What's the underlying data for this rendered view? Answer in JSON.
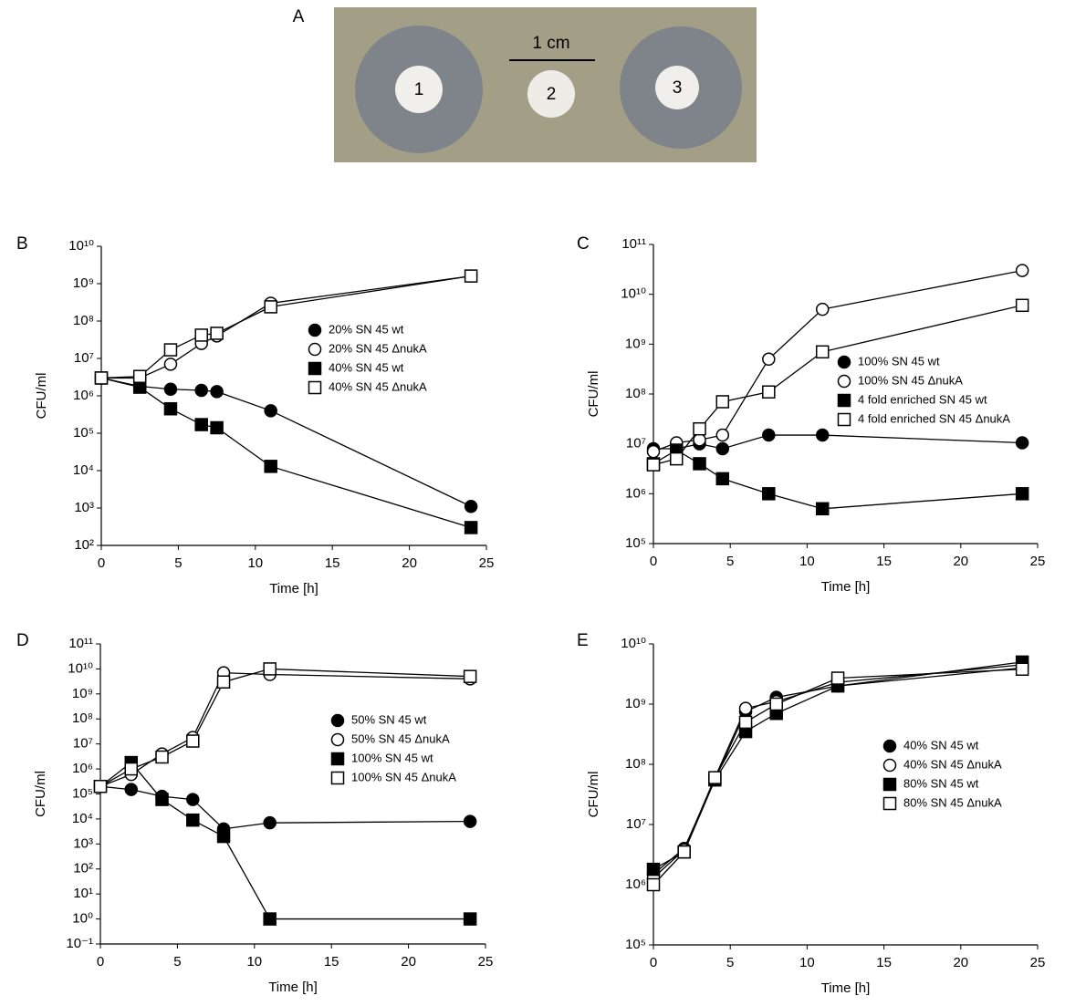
{
  "photo": {
    "label": "A",
    "scale_bar": "1 cm",
    "disks": [
      "1",
      "2",
      "3"
    ]
  },
  "chart_data": [
    {
      "type": "line",
      "panel_label": "B",
      "xlabel": "Time [h]",
      "ylabel": "CFU/ml",
      "log_y": true,
      "legend": "right",
      "color": "#000000",
      "x": [
        0,
        2.5,
        4.5,
        6.5,
        7.5,
        11,
        24
      ],
      "xlim": [
        0,
        25
      ],
      "xticks": [
        0,
        5,
        10,
        15,
        20,
        25
      ],
      "ylim": [
        100,
        10000000000
      ],
      "yticks": [
        {
          "value": 100,
          "label": "10²"
        },
        {
          "value": 1000,
          "label": "10³"
        },
        {
          "value": 10000,
          "label": "10⁴"
        },
        {
          "value": 100000,
          "label": "10⁵"
        },
        {
          "value": 1000000,
          "label": "10⁶"
        },
        {
          "value": 10000000,
          "label": "10⁷"
        },
        {
          "value": 100000000,
          "label": "10⁸"
        },
        {
          "value": 1000000000,
          "label": "10⁹"
        },
        {
          "value": 10000000000,
          "label": "10¹⁰"
        }
      ],
      "series": [
        {
          "name": "20% SN 45 wt",
          "marker": "circle",
          "filled": true,
          "values": [
            3000000,
            1800000,
            1500000,
            1400000,
            1300000,
            400000,
            1100
          ]
        },
        {
          "name": "20% SN 45 ΔnukA",
          "marker": "circle",
          "filled": false,
          "values": [
            3000000,
            3000000,
            7000000,
            25000000,
            40000000,
            300000000,
            1600000000
          ]
        },
        {
          "name": "40% SN 45 wt",
          "marker": "square",
          "filled": true,
          "values": [
            3000000,
            1700000,
            450000,
            170000,
            140000,
            13000,
            300
          ]
        },
        {
          "name": "40% SN 45 ΔnukA",
          "marker": "square",
          "filled": false,
          "values": [
            3000000,
            3300000,
            17000000,
            42000000,
            47000000,
            240000000,
            1600000000
          ]
        }
      ]
    },
    {
      "type": "line",
      "panel_label": "C",
      "xlabel": "Time [h]",
      "ylabel": "CFU/ml",
      "log_y": true,
      "legend": "right",
      "color": "#000000",
      "x": [
        0,
        1.5,
        3,
        4.5,
        7.5,
        11,
        24
      ],
      "xlim": [
        0,
        25
      ],
      "xticks": [
        0,
        5,
        10,
        15,
        20,
        25
      ],
      "ylim": [
        100000,
        100000000000
      ],
      "yticks": [
        {
          "value": 100000,
          "label": "10⁵"
        },
        {
          "value": 1000000,
          "label": "10⁶"
        },
        {
          "value": 10000000,
          "label": "10⁷"
        },
        {
          "value": 100000000,
          "label": "10⁸"
        },
        {
          "value": 1000000000,
          "label": "10⁹"
        },
        {
          "value": 10000000000,
          "label": "10¹⁰"
        },
        {
          "value": 100000000000,
          "label": "10¹¹"
        }
      ],
      "series": [
        {
          "name": "100% SN 45 wt",
          "marker": "circle",
          "filled": true,
          "values": [
            8000000,
            8000000,
            10000000,
            8000000,
            15000000,
            15000000,
            10500000
          ]
        },
        {
          "name": "100% SN 45 ΔnukA",
          "marker": "circle",
          "filled": false,
          "values": [
            7000000,
            10500000,
            12000000,
            15000000,
            500000000,
            5000000000,
            30000000000
          ]
        },
        {
          "name": "4 fold enriched SN 45 wt",
          "marker": "square",
          "filled": true,
          "values": [
            4000000,
            7500000,
            4000000,
            2000000,
            1000000,
            500000,
            1000000
          ]
        },
        {
          "name": "4 fold enriched SN 45 ΔnukA",
          "marker": "square",
          "filled": false,
          "values": [
            3800000,
            5000000,
            20000000,
            70000000,
            110000000,
            700000000,
            6000000000
          ]
        }
      ]
    },
    {
      "type": "line",
      "panel_label": "D",
      "xlabel": "Time [h]",
      "ylabel": "CFU/ml",
      "log_y": true,
      "legend": "right",
      "color": "#000000",
      "x": [
        0,
        2,
        4,
        6,
        8,
        11,
        24
      ],
      "xlim": [
        0,
        25
      ],
      "xticks": [
        0,
        5,
        10,
        15,
        20,
        25
      ],
      "ylim": [
        0.1,
        100000000000
      ],
      "yticks": [
        {
          "value": 0.1,
          "label": "10⁻¹"
        },
        {
          "value": 1,
          "label": "10⁰"
        },
        {
          "value": 10,
          "label": "10¹"
        },
        {
          "value": 100,
          "label": "10²"
        },
        {
          "value": 1000,
          "label": "10³"
        },
        {
          "value": 10000,
          "label": "10⁴"
        },
        {
          "value": 100000,
          "label": "10⁵"
        },
        {
          "value": 1000000,
          "label": "10⁶"
        },
        {
          "value": 10000000,
          "label": "10⁷"
        },
        {
          "value": 100000000,
          "label": "10⁸"
        },
        {
          "value": 1000000000,
          "label": "10⁹"
        },
        {
          "value": 10000000000,
          "label": "10¹⁰"
        },
        {
          "value": 100000000000,
          "label": "10¹¹"
        }
      ],
      "series": [
        {
          "name": "50% SN 45 wt",
          "marker": "circle",
          "filled": true,
          "values": [
            200000,
            150000,
            80000,
            60000,
            4000,
            7000,
            8000
          ]
        },
        {
          "name": "50% SN 45 ΔnukA",
          "marker": "circle",
          "filled": false,
          "values": [
            200000,
            600000,
            4000000,
            18000000,
            7000000000,
            6000000000,
            4000000000
          ]
        },
        {
          "name": "100% SN 45 wt",
          "marker": "square",
          "filled": true,
          "values": [
            200000,
            1800000,
            60000,
            9000,
            2000,
            1,
            1
          ]
        },
        {
          "name": "100% SN 45 ΔnukA",
          "marker": "square",
          "filled": false,
          "values": [
            200000,
            1000000,
            3000000,
            13000000,
            3000000000,
            10000000000,
            5000000000
          ]
        }
      ]
    },
    {
      "type": "line",
      "panel_label": "E",
      "xlabel": "Time [h]",
      "ylabel": "CFU/ml",
      "log_y": true,
      "legend": "right",
      "color": "#000000",
      "x": [
        0,
        2,
        4,
        6,
        8,
        12,
        24
      ],
      "xlim": [
        0,
        25
      ],
      "xticks": [
        0,
        5,
        10,
        15,
        20,
        25
      ],
      "ylim": [
        100000,
        10000000000
      ],
      "yticks": [
        {
          "value": 100000,
          "label": "10⁵"
        },
        {
          "value": 1000000,
          "label": "10⁶"
        },
        {
          "value": 10000000,
          "label": "10⁷"
        },
        {
          "value": 100000000,
          "label": "10⁸"
        },
        {
          "value": 1000000000,
          "label": "10⁹"
        },
        {
          "value": 10000000000,
          "label": "10¹⁰"
        }
      ],
      "series": [
        {
          "name": "40% SN 45 wt",
          "marker": "circle",
          "filled": true,
          "values": [
            1500000,
            4000000,
            55000000,
            750000000,
            1300000000,
            2000000000,
            4000000000
          ]
        },
        {
          "name": "40% SN 45 ΔnukA",
          "marker": "circle",
          "filled": false,
          "values": [
            1300000,
            3800000,
            60000000,
            850000000,
            1100000000,
            2300000000,
            4500000000
          ]
        },
        {
          "name": "80% SN 45 wt",
          "marker": "square",
          "filled": true,
          "values": [
            1800000,
            3500000,
            55000000,
            350000000,
            700000000,
            2000000000,
            5000000000
          ]
        },
        {
          "name": "80% SN 45 ΔnukA",
          "marker": "square",
          "filled": false,
          "values": [
            1000000,
            3500000,
            60000000,
            500000000,
            1000000000,
            2700000000,
            3800000000
          ]
        }
      ]
    }
  ]
}
